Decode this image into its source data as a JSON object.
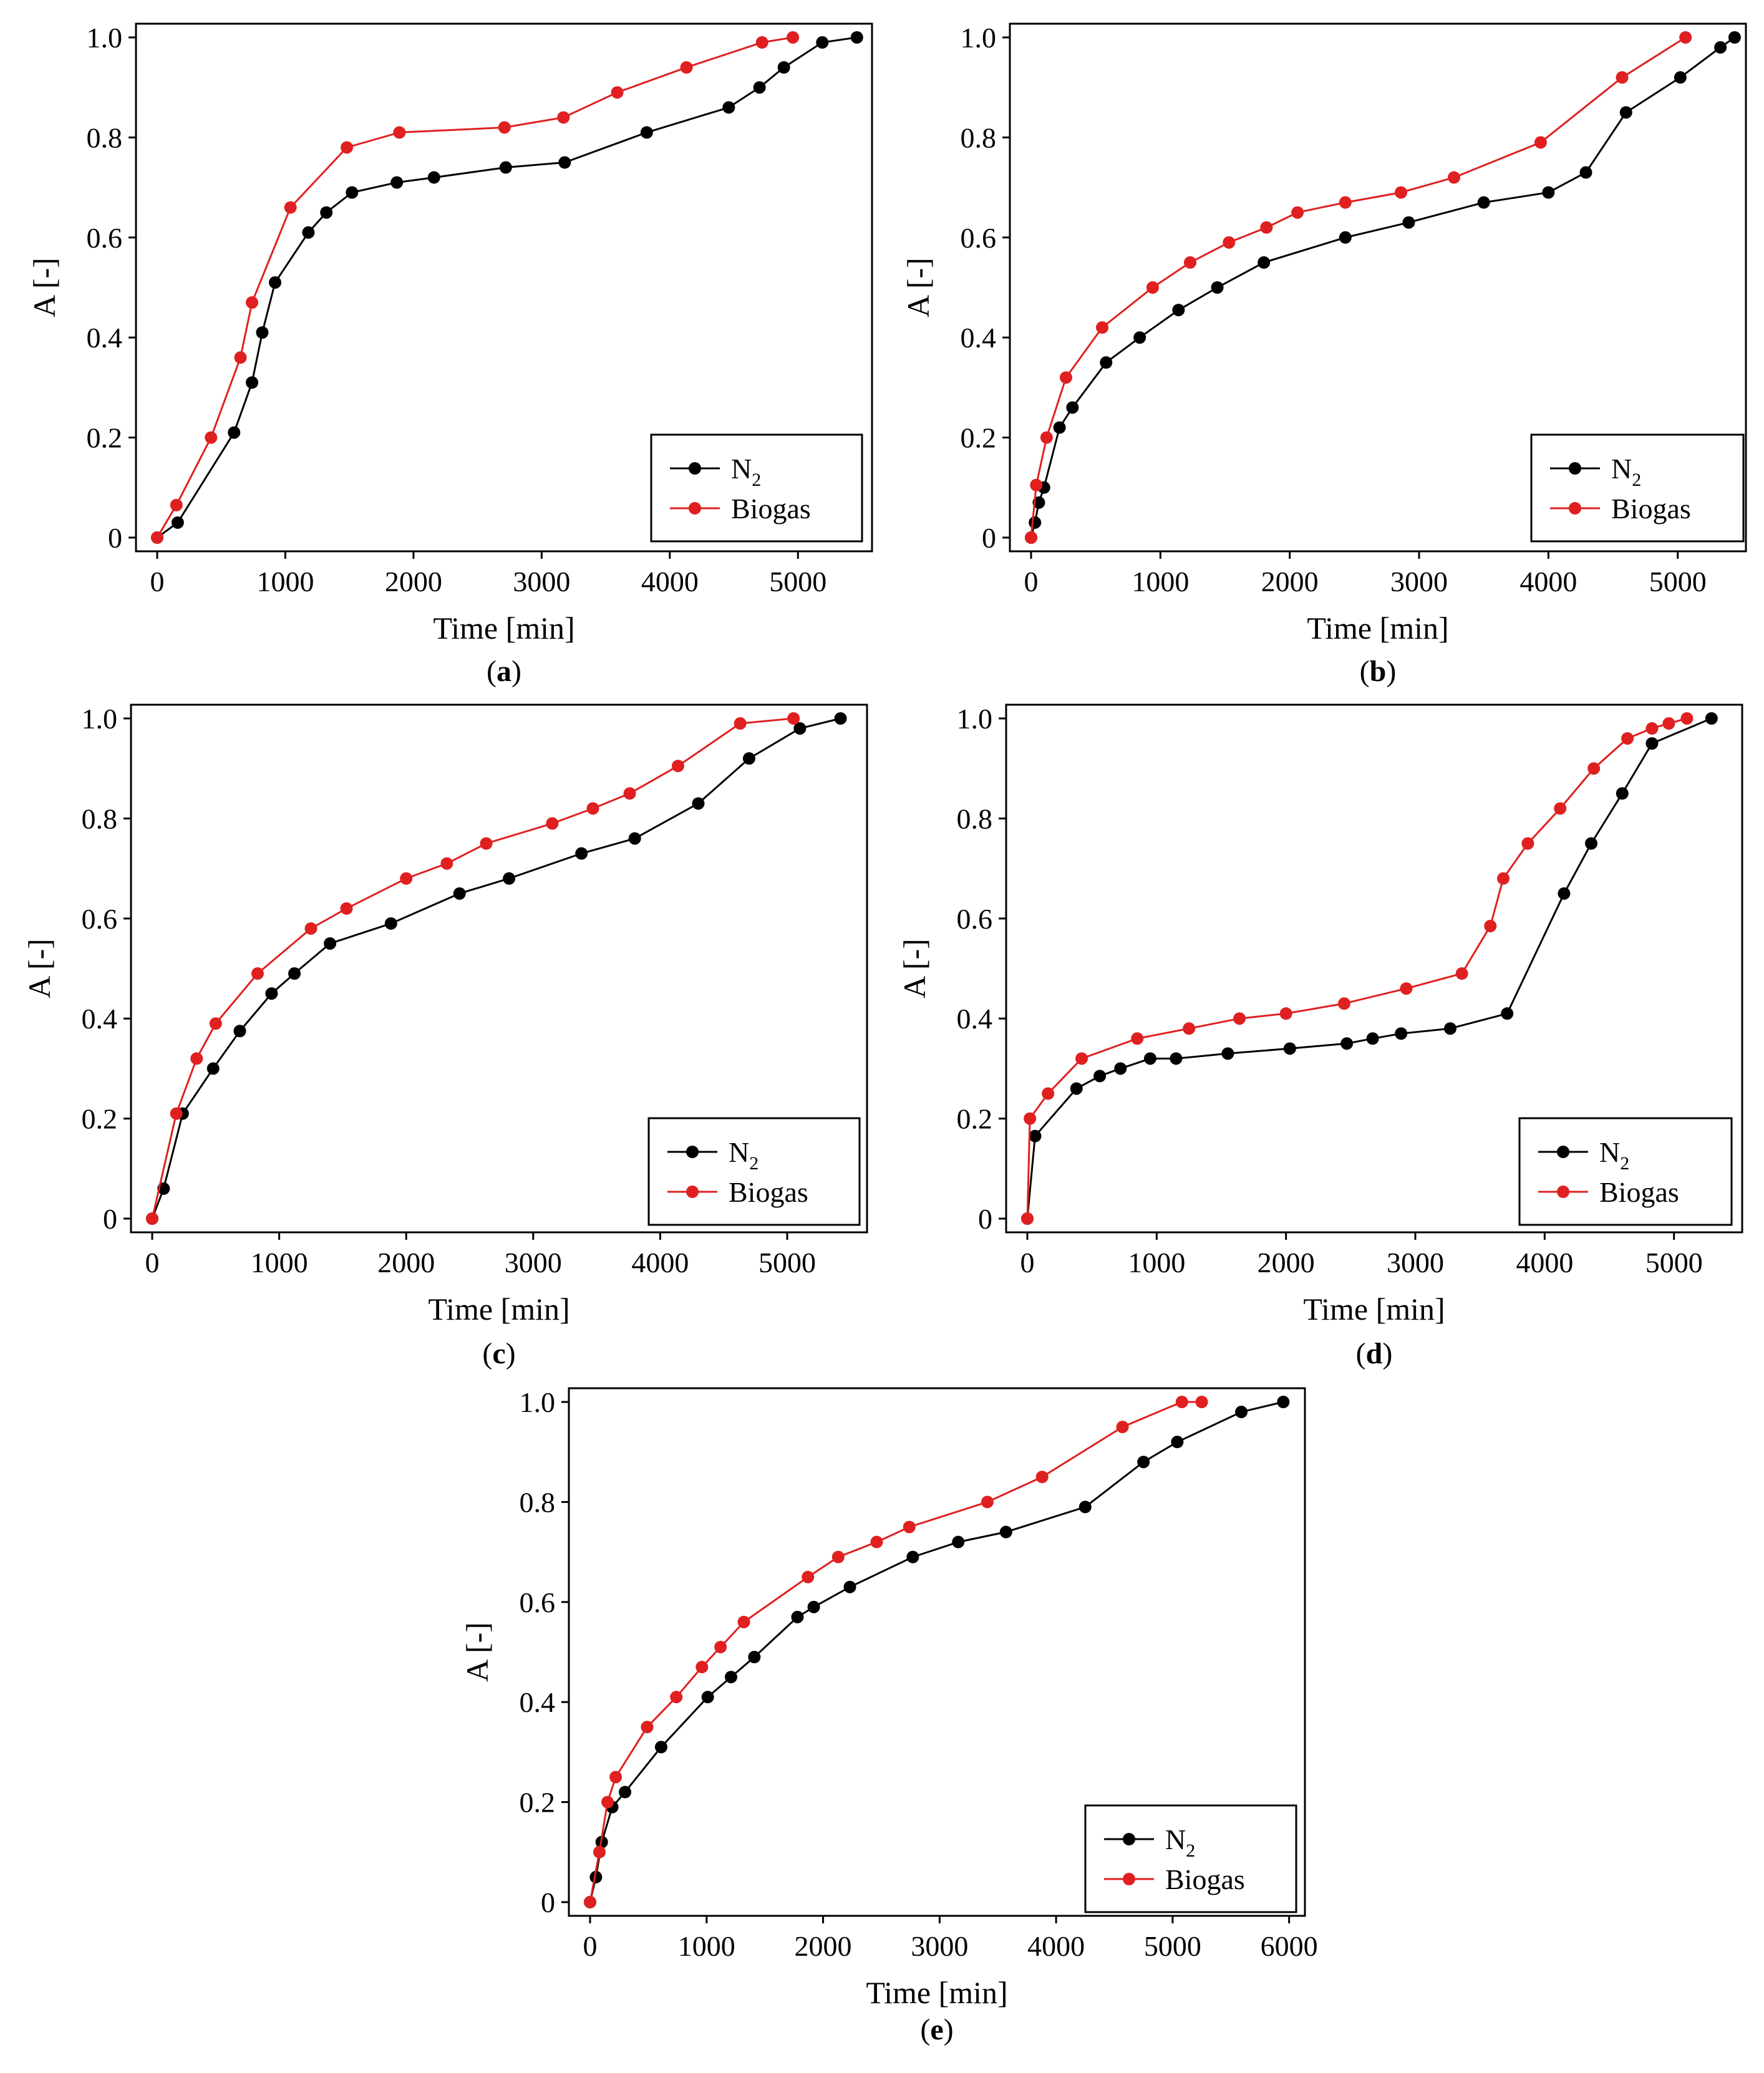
{
  "chart_data": [
    {
      "type": "line",
      "panel": "a",
      "xlabel": "Time [min]",
      "ylabel": "A [-]",
      "xlim": [
        0,
        5500
      ],
      "ylim": [
        0,
        1.0
      ],
      "xticks": [
        0,
        1000,
        2000,
        3000,
        4000,
        5000
      ],
      "yticks": [
        0,
        0.2,
        0.4,
        0.6,
        0.8,
        1.0
      ],
      "ytick_labels": [
        "0",
        "0.2",
        "0.4",
        "0.6",
        "0.8",
        "1.0"
      ],
      "legend_position": "bottom-right",
      "series": [
        {
          "name": "N2",
          "label_main": "N",
          "label_sub": "2",
          "color": "#000000",
          "x": [
            0,
            160,
            600,
            740,
            820,
            920,
            1180,
            1320,
            1520,
            1870,
            2160,
            2720,
            3180,
            3820,
            4460,
            4700,
            4890,
            5190,
            5460
          ],
          "y": [
            0,
            0.03,
            0.21,
            0.31,
            0.41,
            0.51,
            0.61,
            0.65,
            0.69,
            0.71,
            0.72,
            0.74,
            0.75,
            0.81,
            0.86,
            0.9,
            0.94,
            0.99,
            1.0
          ]
        },
        {
          "name": "Biogas",
          "label_main": "Biogas",
          "label_sub": "",
          "color": "#e02020",
          "x": [
            0,
            150,
            420,
            650,
            740,
            1040,
            1480,
            1890,
            2710,
            3170,
            3590,
            4130,
            4720,
            4960
          ],
          "y": [
            0,
            0.065,
            0.2,
            0.36,
            0.47,
            0.66,
            0.78,
            0.81,
            0.82,
            0.84,
            0.89,
            0.94,
            0.99,
            1.0
          ]
        }
      ]
    },
    {
      "type": "line",
      "panel": "b",
      "xlabel": "Time [min]",
      "ylabel": "A [-]",
      "xlim": [
        0,
        5450
      ],
      "ylim": [
        0,
        1.0
      ],
      "xticks": [
        0,
        1000,
        2000,
        3000,
        4000,
        5000
      ],
      "yticks": [
        0,
        0.2,
        0.4,
        0.6,
        0.8,
        1.0
      ],
      "ytick_labels": [
        "0",
        "0.2",
        "0.4",
        "0.6",
        "0.8",
        "1.0"
      ],
      "legend_position": "bottom-right",
      "series": [
        {
          "name": "N2",
          "label_main": "N",
          "label_sub": "2",
          "color": "#000000",
          "x": [
            0,
            30,
            60,
            100,
            220,
            320,
            580,
            840,
            1140,
            1440,
            1800,
            2430,
            2920,
            3500,
            4000,
            4290,
            4600,
            5020,
            5330,
            5440
          ],
          "y": [
            0,
            0.03,
            0.07,
            0.1,
            0.22,
            0.26,
            0.35,
            0.4,
            0.455,
            0.5,
            0.55,
            0.6,
            0.63,
            0.67,
            0.69,
            0.73,
            0.85,
            0.92,
            0.98,
            1.0
          ]
        },
        {
          "name": "Biogas",
          "label_main": "Biogas",
          "label_sub": "",
          "color": "#e02020",
          "x": [
            0,
            40,
            120,
            270,
            550,
            940,
            1230,
            1530,
            1820,
            2060,
            2430,
            2860,
            3270,
            3940,
            4570,
            5060
          ],
          "y": [
            0,
            0.105,
            0.2,
            0.32,
            0.42,
            0.5,
            0.55,
            0.59,
            0.62,
            0.65,
            0.67,
            0.69,
            0.72,
            0.79,
            0.92,
            1.0
          ]
        }
      ]
    },
    {
      "type": "line",
      "panel": "c",
      "xlabel": "Time [min]",
      "ylabel": "A [-]",
      "xlim": [
        0,
        5550
      ],
      "ylim": [
        0,
        1.0
      ],
      "xticks": [
        0,
        1000,
        2000,
        3000,
        4000,
        5000
      ],
      "yticks": [
        0,
        0.2,
        0.4,
        0.6,
        0.8,
        1.0
      ],
      "ytick_labels": [
        "0",
        "0.2",
        "0.4",
        "0.6",
        "0.8",
        "1.0"
      ],
      "legend_position": "bottom-right",
      "series": [
        {
          "name": "N2",
          "label_main": "N",
          "label_sub": "2",
          "color": "#000000",
          "x": [
            0,
            90,
            240,
            480,
            690,
            940,
            1120,
            1400,
            1880,
            2420,
            2810,
            3380,
            3800,
            4300,
            4700,
            5100,
            5420
          ],
          "y": [
            0,
            0.06,
            0.21,
            0.3,
            0.375,
            0.45,
            0.49,
            0.55,
            0.59,
            0.65,
            0.68,
            0.73,
            0.76,
            0.83,
            0.92,
            0.98,
            1.0
          ]
        },
        {
          "name": "Biogas",
          "label_main": "Biogas",
          "label_sub": "",
          "color": "#e02020",
          "x": [
            0,
            190,
            350,
            500,
            830,
            1250,
            1530,
            2000,
            2320,
            2630,
            3150,
            3470,
            3760,
            4140,
            4630,
            5050
          ],
          "y": [
            0,
            0.21,
            0.32,
            0.39,
            0.49,
            0.58,
            0.62,
            0.68,
            0.71,
            0.75,
            0.79,
            0.82,
            0.85,
            0.905,
            0.99,
            1.0
          ]
        }
      ]
    },
    {
      "type": "line",
      "panel": "d",
      "xlabel": "Time [min]",
      "ylabel": "A [-]",
      "xlim": [
        0,
        5450
      ],
      "ylim": [
        0,
        1.0
      ],
      "xticks": [
        0,
        1000,
        2000,
        3000,
        4000,
        5000
      ],
      "yticks": [
        0,
        0.2,
        0.4,
        0.6,
        0.8,
        1.0
      ],
      "ytick_labels": [
        "0",
        "0.2",
        "0.4",
        "0.6",
        "0.8",
        "1.0"
      ],
      "legend_position": "bottom-right",
      "series": [
        {
          "name": "N2",
          "label_main": "N",
          "label_sub": "2",
          "color": "#000000",
          "x": [
            0,
            60,
            380,
            560,
            720,
            950,
            1150,
            1550,
            2030,
            2470,
            2670,
            2890,
            3270,
            3710,
            4150,
            4360,
            4600,
            4830,
            5290
          ],
          "y": [
            0,
            0.165,
            0.26,
            0.285,
            0.3,
            0.32,
            0.32,
            0.33,
            0.34,
            0.35,
            0.36,
            0.37,
            0.38,
            0.41,
            0.65,
            0.75,
            0.85,
            0.95,
            1.0
          ]
        },
        {
          "name": "Biogas",
          "label_main": "Biogas",
          "label_sub": "",
          "color": "#e02020",
          "x": [
            0,
            20,
            160,
            420,
            850,
            1250,
            1640,
            2000,
            2450,
            2930,
            3360,
            3580,
            3680,
            3870,
            4120,
            4380,
            4640,
            4830,
            4960,
            5100
          ],
          "y": [
            0,
            0.2,
            0.25,
            0.32,
            0.36,
            0.38,
            0.4,
            0.41,
            0.43,
            0.46,
            0.49,
            0.585,
            0.68,
            0.75,
            0.82,
            0.9,
            0.96,
            0.98,
            0.99,
            1.0
          ]
        }
      ]
    },
    {
      "type": "line",
      "panel": "e",
      "xlabel": "Time [min]",
      "ylabel": "A [-]",
      "xlim": [
        0,
        6050
      ],
      "ylim": [
        0,
        1.0
      ],
      "xticks": [
        0,
        1000,
        2000,
        3000,
        4000,
        5000,
        6000
      ],
      "yticks": [
        0,
        0.2,
        0.4,
        0.6,
        0.8,
        1.0
      ],
      "ytick_labels": [
        "0",
        "0.2",
        "0.4",
        "0.6",
        "0.8",
        "1.0"
      ],
      "legend_position": "bottom-right",
      "series": [
        {
          "name": "N2",
          "label_main": "N",
          "label_sub": "2",
          "color": "#000000",
          "x": [
            0,
            50,
            100,
            190,
            300,
            610,
            1010,
            1210,
            1410,
            1780,
            1920,
            2230,
            2770,
            3160,
            3570,
            4250,
            4750,
            5040,
            5590,
            5950
          ],
          "y": [
            0,
            0.05,
            0.12,
            0.19,
            0.22,
            0.31,
            0.41,
            0.45,
            0.49,
            0.57,
            0.59,
            0.63,
            0.69,
            0.72,
            0.74,
            0.79,
            0.88,
            0.92,
            0.98,
            1.0
          ]
        },
        {
          "name": "Biogas",
          "label_main": "Biogas",
          "label_sub": "",
          "color": "#e02020",
          "x": [
            0,
            80,
            150,
            220,
            490,
            740,
            960,
            1120,
            1320,
            1870,
            2130,
            2460,
            2740,
            3410,
            3880,
            4570,
            5080,
            5250
          ],
          "y": [
            0,
            0.1,
            0.2,
            0.25,
            0.35,
            0.41,
            0.47,
            0.51,
            0.56,
            0.65,
            0.69,
            0.72,
            0.75,
            0.8,
            0.85,
            0.95,
            1.0,
            1.0
          ]
        }
      ]
    }
  ]
}
